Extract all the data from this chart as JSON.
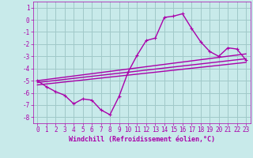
{
  "xlabel": "Windchill (Refroidissement éolien,°C)",
  "background_color": "#c8eaea",
  "grid_color": "#a0c8c8",
  "line_color": "#aa00aa",
  "xlim": [
    -0.5,
    23.5
  ],
  "ylim": [
    -8.5,
    1.5
  ],
  "xticks": [
    0,
    1,
    2,
    3,
    4,
    5,
    6,
    7,
    8,
    9,
    10,
    11,
    12,
    13,
    14,
    15,
    16,
    17,
    18,
    19,
    20,
    21,
    22,
    23
  ],
  "yticks": [
    1,
    0,
    -1,
    -2,
    -3,
    -4,
    -5,
    -6,
    -7,
    -8
  ],
  "series1_x": [
    0,
    1,
    2,
    3,
    4,
    5,
    6,
    7,
    8,
    9,
    10,
    11,
    12,
    13,
    14,
    15,
    16,
    17,
    18,
    19,
    20,
    21,
    22,
    23
  ],
  "series1_y": [
    -5.0,
    -5.5,
    -5.9,
    -6.2,
    -6.9,
    -6.5,
    -6.6,
    -7.4,
    -7.8,
    -6.3,
    -4.3,
    -2.9,
    -1.7,
    -1.5,
    0.2,
    0.3,
    0.5,
    -0.7,
    -1.8,
    -2.6,
    -3.0,
    -2.3,
    -2.4,
    -3.3
  ],
  "line1_x": [
    0,
    23
  ],
  "line1_y": [
    -5.0,
    -2.8
  ],
  "line2_x": [
    0,
    23
  ],
  "line2_y": [
    -5.15,
    -3.2
  ],
  "line3_x": [
    0,
    23
  ],
  "line3_y": [
    -5.35,
    -3.5
  ],
  "marker_size": 3,
  "line_width": 1.0,
  "xlabel_fontsize": 6,
  "tick_fontsize": 5.5
}
